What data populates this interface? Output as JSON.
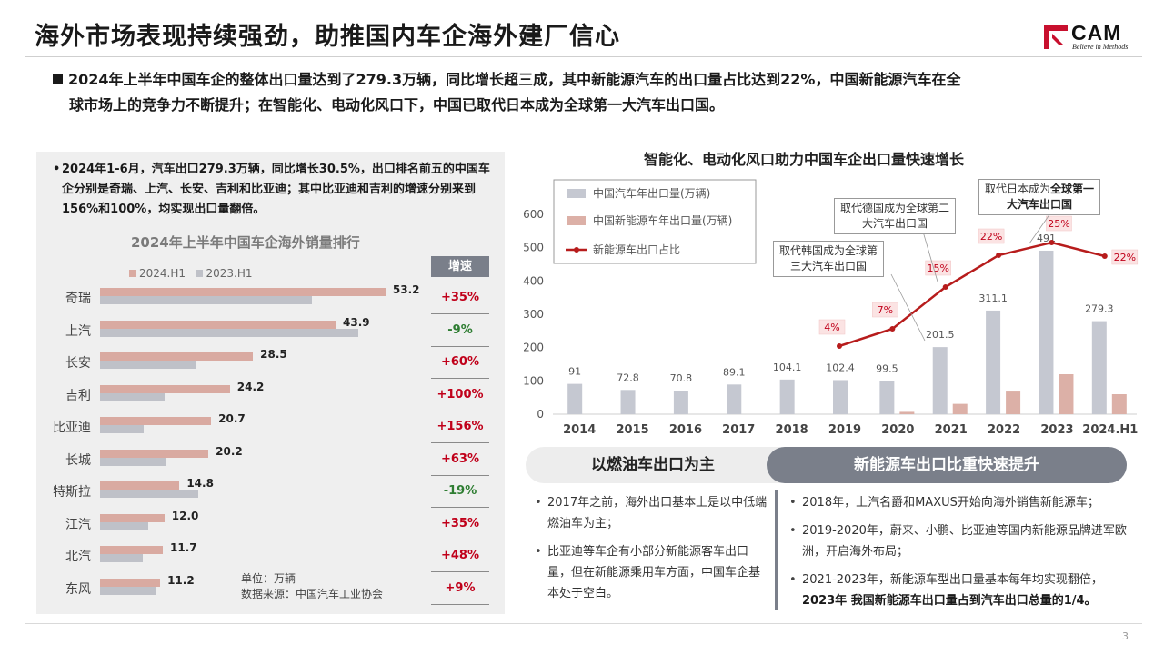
{
  "header": {
    "title": "海外市场表现持续强劲，助推国内车企海外建厂信心",
    "logo_text": "CAM",
    "logo_sub": "Believe in Methods"
  },
  "summary": {
    "line1": "2024年上半年中国车企的整体出口量达到了279.3万辆，同比增长超三成，其中新能源汽车的出口量占比达到22%，中国新能源汽车在全",
    "line2": "球市场上的竞争力不断提升；在智能化、电动化风口下，中国已取代日本成为全球第一大汽车出口国。"
  },
  "left_panel": {
    "note": "2024年1-6月，汽车出口279.3万辆，同比增长30.5%，出口排名前五的中国车企分别是奇瑞、上汽、长安、吉利和比亚迪；其中比亚迪和吉利的增速分别来到156%和100%，均实现出口量翻倍。",
    "footnote_unit": "单位：万辆",
    "footnote_source": "数据来源：中国汽车工业协会"
  },
  "right_section": {
    "title": "智能化、电动化风口助力中国车企出口量快速增长",
    "left_header": "以燃油车出口为主",
    "right_header": "新能源车出口比重快速提升",
    "left_bullets": [
      "2017年之前，海外出口基本上是以中低端燃油车为主；",
      "比亚迪等车企有小部分新能源客车出口量，但在新能源乘用车方面，中国车企基本处于空白。"
    ],
    "right_bullets": [
      "2018年，上汽名爵和MAXUS开始向海外销售新能源车；",
      "2019-2020年，蔚来、小鹏、比亚迪等国内新能源品牌进军欧洲，开启海外布局；",
      "2021-2023年，新能源车型出口量基本每年均实现翻倍，"
    ],
    "right_bullet_bold": "2023年 我国新能源车出口量占到汽车出口总量的1/4。"
  },
  "page_number": "3",
  "colors": {
    "series_2024": "#d9aaa1",
    "series_2023": "#bfc1c8",
    "growth_positive": "#c0001a",
    "growth_negative": "#2e7d32",
    "line_red": "#b71c1c",
    "header_gray": "#7a7f8a"
  },
  "chart_data": [
    {
      "type": "bar",
      "orientation": "horizontal",
      "title": "2024年上半年中国车企海外销量排行",
      "categories": [
        "奇瑞",
        "上汽",
        "长安",
        "吉利",
        "比亚迪",
        "长城",
        "特斯拉",
        "江汽",
        "北汽",
        "东风"
      ],
      "series": [
        {
          "name": "2024.H1",
          "values": [
            53.2,
            43.9,
            28.5,
            24.2,
            20.7,
            20.2,
            14.8,
            12.0,
            11.7,
            11.2
          ]
        },
        {
          "name": "2023.H1",
          "values": [
            39.5,
            48.1,
            17.8,
            12.1,
            8.1,
            12.4,
            18.3,
            8.9,
            7.9,
            10.3
          ]
        }
      ],
      "growth_header": "增速",
      "growth": [
        "+35%",
        "-9%",
        "+60%",
        "+100%",
        "+156%",
        "+63%",
        "-19%",
        "+35%",
        "+48%",
        "+9%"
      ],
      "unit": "万辆"
    },
    {
      "type": "bar",
      "title": "智能化、电动化风口助力中国车企出口量快速增长",
      "categories": [
        "2014",
        "2015",
        "2016",
        "2017",
        "2018",
        "2019",
        "2020",
        "2021",
        "2022",
        "2023",
        "2024.H1"
      ],
      "series": [
        {
          "name": "中国汽车年出口量(万辆)",
          "values": [
            91,
            72.8,
            70.8,
            89.1,
            104.1,
            102.4,
            99.5,
            201.5,
            311.1,
            491,
            279.3
          ]
        },
        {
          "name": "中国新能源车年出口量(万辆)",
          "values": [
            null,
            null,
            null,
            null,
            null,
            null,
            7,
            31,
            68,
            120,
            60
          ]
        },
        {
          "name": "新能源车出口占比",
          "type": "line",
          "values": [
            null,
            null,
            null,
            null,
            null,
            4,
            7,
            15,
            22,
            25,
            22
          ],
          "labels": [
            "",
            "",
            "",
            "",
            "",
            "4%",
            "7%",
            "15%",
            "22%",
            "25%",
            "22%"
          ]
        }
      ],
      "ylim": [
        0,
        600
      ],
      "yticks": [
        "0",
        "100",
        "200",
        "300",
        "400",
        "500",
        "600"
      ],
      "callouts": [
        {
          "text1": "取代韩国成为全球第",
          "text2": "三大汽车出口国"
        },
        {
          "text1": "取代德国成为全球第二",
          "text2": "大汽车出口国"
        },
        {
          "text1": "取代日本成为",
          "text1_bold": "全球第一",
          "text2": "大汽车出口国"
        }
      ]
    }
  ]
}
